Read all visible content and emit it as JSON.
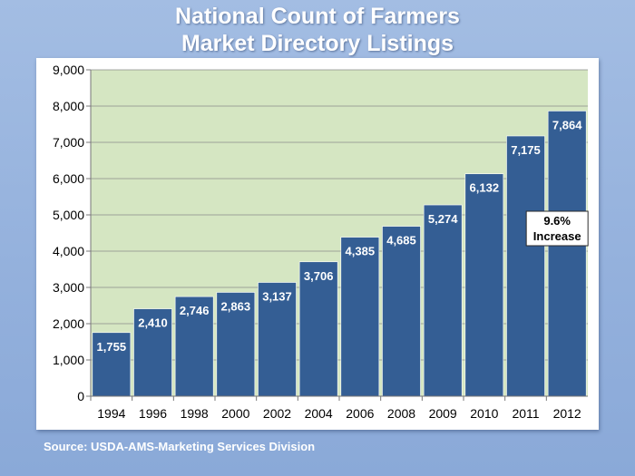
{
  "title_lines": [
    "National Count of Farmers",
    "Market Directory Listings"
  ],
  "source": "Source:  USDA-AMS-Marketing Services Division",
  "colors": {
    "background": "#93b0dc",
    "plot_area": "#d5e6c2",
    "bar": "#345e94",
    "bar_label": "#ffffff",
    "axis_text": "#000000"
  },
  "chart_data": {
    "type": "bar",
    "title": "National Count of Farmers Market Directory Listings",
    "categories": [
      "1994",
      "1996",
      "1998",
      "2000",
      "2002",
      "2004",
      "2006",
      "2008",
      "2009",
      "2010",
      "2011",
      "2012"
    ],
    "values": [
      1755,
      2410,
      2746,
      2863,
      3137,
      3706,
      4385,
      4685,
      5274,
      6132,
      7175,
      7864
    ],
    "value_labels": [
      "1,755",
      "2,410",
      "2,746",
      "2,863",
      "3,137",
      "3,706",
      "4,385",
      "4,685",
      "5,274",
      "6,132",
      "7,175",
      "7,864"
    ],
    "yticks": [
      0,
      1000,
      2000,
      3000,
      4000,
      5000,
      6000,
      7000,
      8000,
      9000
    ],
    "ytick_labels": [
      "0",
      "1,000",
      "2,000",
      "3,000",
      "4,000",
      "5,000",
      "6,000",
      "7,000",
      "8,000",
      "9,000"
    ],
    "ylim": [
      0,
      9000
    ],
    "xlabel": "",
    "ylabel": "",
    "grid": true,
    "annotation": {
      "lines": [
        "9.6%",
        "Increase"
      ],
      "category": "2012"
    }
  }
}
